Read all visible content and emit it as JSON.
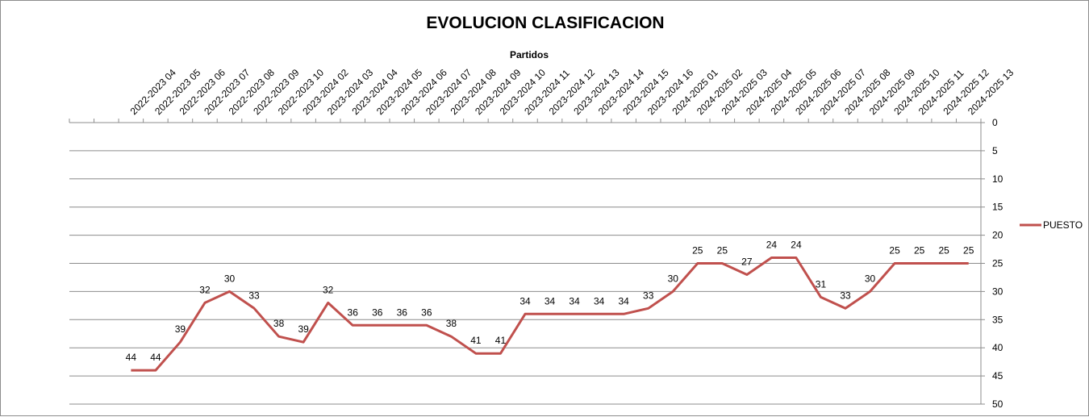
{
  "chart_data": {
    "type": "line",
    "title": "EVOLUCION CLASIFICACION",
    "xlabel": "Partidos",
    "ylabel": "",
    "x_axis_position": "top",
    "y_axis_position": "right",
    "y_inverted": true,
    "ylim": [
      0,
      50
    ],
    "y_ticks": [
      0,
      5,
      10,
      15,
      20,
      25,
      30,
      35,
      40,
      45,
      50
    ],
    "grid": true,
    "legend": "right",
    "categories": [
      "",
      "",
      "2022-2023 04",
      "2022-2023 05",
      "2022-2023 06",
      "2022-2023 07",
      "2022-2023 08",
      "2022-2023 09",
      "2022-2023 10",
      "2023-2024 02",
      "2023-2024 03",
      "2023-2024 04",
      "2023-2024 05",
      "2023-2024 06",
      "2023-2024 07",
      "2023-2024 08",
      "2023-2024 09",
      "2023-2024 10",
      "2023-2024 11",
      "2023-2024 12",
      "2023-2024 13",
      "2023-2024 14",
      "2023-2024 15",
      "2023-2024 16",
      "2024-2025 01",
      "2024-2025 02",
      "2024-2025 03",
      "2024-2025 04",
      "2024-2025 05",
      "2024-2025 06",
      "2024-2025 07",
      "2024-2025 08",
      "2024-2025 09",
      "2024-2025 10",
      "2024-2025 11",
      "2024-2025 12",
      "2024-2025 13"
    ],
    "series": [
      {
        "name": "PUESTO",
        "color": "#c0504d",
        "values": [
          null,
          null,
          44,
          44,
          39,
          32,
          30,
          33,
          38,
          39,
          32,
          36,
          36,
          36,
          36,
          38,
          41,
          41,
          34,
          34,
          34,
          34,
          34,
          33,
          30,
          25,
          25,
          27,
          24,
          24,
          31,
          33,
          30,
          25,
          25,
          25,
          25
        ]
      }
    ]
  }
}
